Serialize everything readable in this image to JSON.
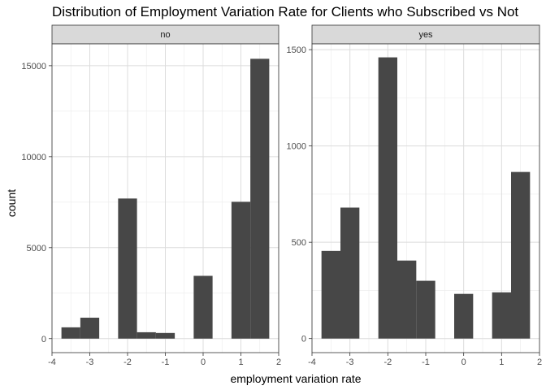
{
  "chart_data": {
    "type": "bar",
    "title": "Distribution of Employment Variation Rate for Clients who Subscribed vs Not",
    "xlabel": "employment variation rate",
    "ylabel": "count",
    "bar_color": "#474747",
    "strip_color": "#d9d9d9",
    "grid": true,
    "xlim": [
      -4,
      2
    ],
    "x_ticks": [
      "-4",
      "-3",
      "-2",
      "-1",
      "0",
      "1",
      "2"
    ],
    "panels": [
      {
        "label": "no",
        "ylim": [
          -770,
          16200
        ],
        "y_ticks": [
          "0",
          "5000",
          "10000",
          "15000"
        ],
        "y_tick_values": [
          0,
          5000,
          10000,
          15000
        ],
        "bins": [
          {
            "x0": -3.75,
            "x1": -3.25,
            "count": 620
          },
          {
            "x0": -3.25,
            "x1": -2.75,
            "count": 1150
          },
          {
            "x0": -2.25,
            "x1": -1.75,
            "count": 7700
          },
          {
            "x0": -1.75,
            "x1": -1.25,
            "count": 350
          },
          {
            "x0": -1.25,
            "x1": -0.75,
            "count": 310
          },
          {
            "x0": -0.25,
            "x1": 0.25,
            "count": 3450
          },
          {
            "x0": 0.75,
            "x1": 1.25,
            "count": 7520
          },
          {
            "x0": 1.25,
            "x1": 1.75,
            "count": 15380
          }
        ]
      },
      {
        "label": "yes",
        "ylim": [
          -73,
          1530
        ],
        "y_ticks": [
          "0",
          "500",
          "1000",
          "1500"
        ],
        "y_tick_values": [
          0,
          500,
          1000,
          1500
        ],
        "bins": [
          {
            "x0": -3.75,
            "x1": -3.25,
            "count": 455
          },
          {
            "x0": -3.25,
            "x1": -2.75,
            "count": 680
          },
          {
            "x0": -2.25,
            "x1": -1.75,
            "count": 1460
          },
          {
            "x0": -1.75,
            "x1": -1.25,
            "count": 405
          },
          {
            "x0": -1.25,
            "x1": -0.75,
            "count": 300
          },
          {
            "x0": -0.25,
            "x1": 0.25,
            "count": 232
          },
          {
            "x0": 0.75,
            "x1": 1.25,
            "count": 240
          },
          {
            "x0": 1.25,
            "x1": 1.75,
            "count": 865
          }
        ]
      }
    ]
  }
}
